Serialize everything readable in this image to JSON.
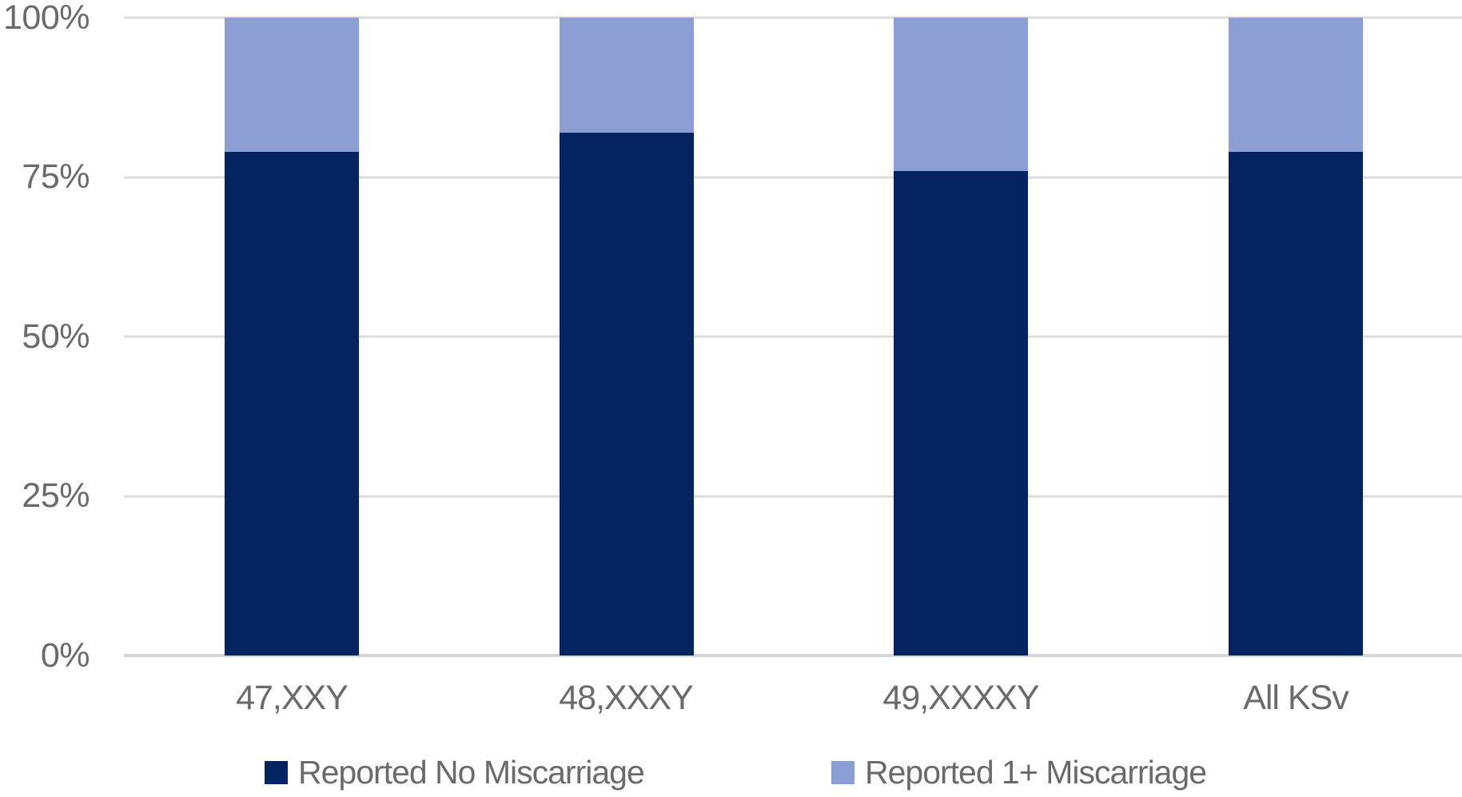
{
  "chart_data": {
    "type": "bar",
    "stacked": true,
    "percent_stacked": true,
    "title": "",
    "xlabel": "",
    "ylabel": "",
    "categories": [
      "47,XXY",
      "48,XXXY",
      "49,XXXXY",
      "All KSv"
    ],
    "series": [
      {
        "name": "Reported No Miscarriage",
        "color": "#032461",
        "values": [
          79,
          82,
          76,
          79
        ]
      },
      {
        "name": "Reported 1+ Miscarriage",
        "color": "#8c9fd4",
        "values": [
          21,
          18,
          24,
          21
        ]
      }
    ],
    "ylim": [
      0,
      100
    ],
    "ytick_labels_top_to_bottom": [
      "100%",
      "75%",
      "50%",
      "25%",
      "0%"
    ],
    "grid": true,
    "legend_position": "bottom",
    "theme": {
      "background": "#ffffff",
      "gridline": "#dcdcdc",
      "axis_line": "#d6d6d6",
      "text": "#6a6a6a"
    }
  }
}
